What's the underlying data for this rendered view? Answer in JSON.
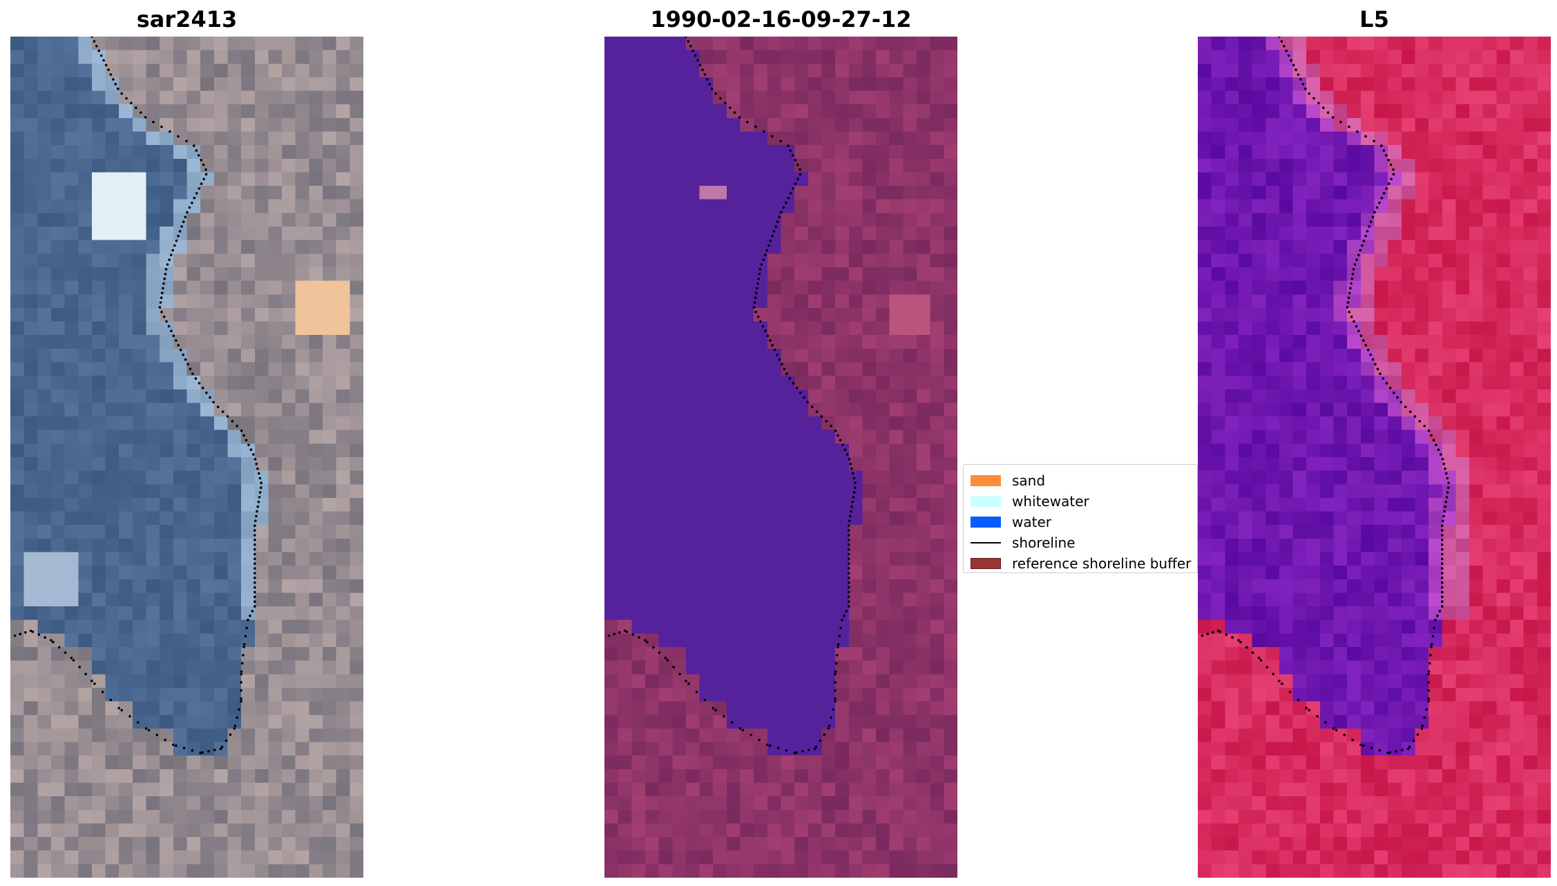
{
  "panels": [
    {
      "title": "sar2413",
      "style": "rgb"
    },
    {
      "title": "1990-02-16-09-27-12",
      "style": "classified"
    },
    {
      "title": "L5",
      "style": "index"
    }
  ],
  "legend": {
    "items": [
      {
        "label": "sand",
        "color": "#ff8c3a",
        "kind": "patch"
      },
      {
        "label": "whitewater",
        "color": "#ccffff",
        "kind": "patch"
      },
      {
        "label": "water",
        "color": "#0a5cff",
        "kind": "patch"
      },
      {
        "label": "shoreline",
        "color": "#000000",
        "kind": "line"
      },
      {
        "label": "reference shoreline buffer",
        "color": "#9b3333",
        "kind": "patch"
      }
    ]
  },
  "colors": {
    "water_class": "#55229c",
    "land_class": "#7a2a5e",
    "index_water": "#5a0aa0",
    "index_land": "#c8174a",
    "shoreline_dots": "#000000"
  }
}
